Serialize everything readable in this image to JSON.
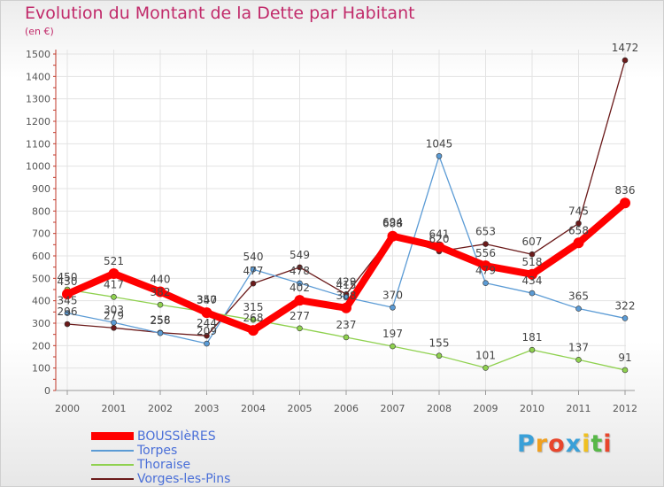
{
  "title": "Evolution du Montant de la Dette par Habitant",
  "subtitle": "(en €)",
  "brand": {
    "letters": [
      "P",
      "r",
      "o",
      "x",
      "i",
      "t",
      "i"
    ],
    "colors": [
      "#3aa0d8",
      "#f0a020",
      "#e8462c",
      "#3aa0d8",
      "#f0c020",
      "#58b848",
      "#e8462c"
    ]
  },
  "chart_data": {
    "type": "line",
    "x": [
      "2000",
      "2001",
      "2002",
      "2003",
      "2004",
      "2005",
      "2006",
      "2007",
      "2008",
      "2009",
      "2010",
      "2011",
      "2012"
    ],
    "ylim": [
      0,
      1500
    ],
    "yticks": [
      0,
      100,
      200,
      300,
      400,
      500,
      600,
      700,
      800,
      900,
      1000,
      1100,
      1200,
      1300,
      1400,
      1500
    ],
    "grid": true,
    "legend_position": "bottom-left",
    "series": [
      {
        "name": "Vorges-les-Pins",
        "color": "#6b1a1a",
        "width": 1.3,
        "values": [
          296,
          279,
          258,
          244,
          477,
          549,
          429,
          694,
          620,
          653,
          607,
          745,
          1472
        ]
      },
      {
        "name": "Torpes",
        "color": "#5b9bd5",
        "width": 1.3,
        "values": [
          345,
          303,
          256,
          209,
          540,
          478,
          415,
          370,
          1045,
          479,
          434,
          365,
          322
        ]
      },
      {
        "name": "Thoraise",
        "color": "#8fd14f",
        "width": 1.3,
        "values": [
          450,
          417,
          382,
          350,
          315,
          277,
          237,
          197,
          155,
          101,
          181,
          137,
          91
        ]
      },
      {
        "name": "BOUSSIèRES",
        "color": "#ff0000",
        "width": 8,
        "values": [
          430,
          521,
          440,
          347,
          268,
          402,
          368,
          688,
          641,
          556,
          518,
          658,
          836
        ]
      }
    ],
    "legend_order": [
      "BOUSSIèRES",
      "Torpes",
      "Thoraise",
      "Vorges-les-Pins"
    ]
  }
}
